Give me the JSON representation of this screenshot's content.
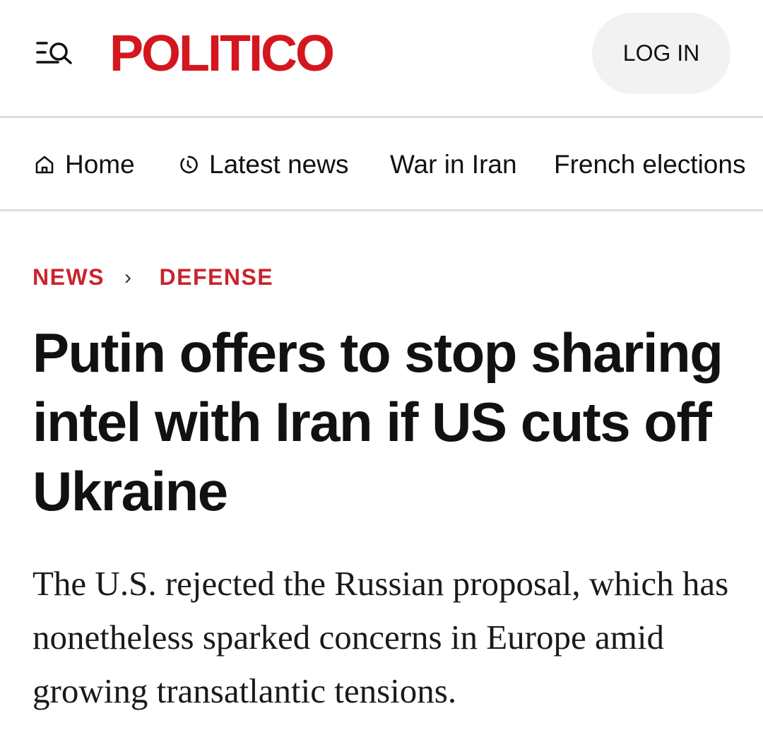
{
  "header": {
    "logo": "POLITICO",
    "login_label": "LOG IN",
    "menu_icon": "menu-search-icon"
  },
  "nav": {
    "items": [
      {
        "label": "Home",
        "icon": "home-icon"
      },
      {
        "label": "Latest news",
        "icon": "clock-icon"
      },
      {
        "label": "War in Iran"
      },
      {
        "label": "French elections"
      }
    ]
  },
  "article": {
    "breadcrumb": [
      "NEWS",
      "DEFENSE"
    ],
    "headline": "Putin offers to stop sharing intel with Iran if US cuts off Ukraine",
    "deck": "The U.S. rejected the Russian proposal, which has nonetheless sparked concerns in Europe amid growing transatlantic tensions."
  },
  "colors": {
    "brand": "#d4161f",
    "breadcrumb": "#c8242c"
  }
}
